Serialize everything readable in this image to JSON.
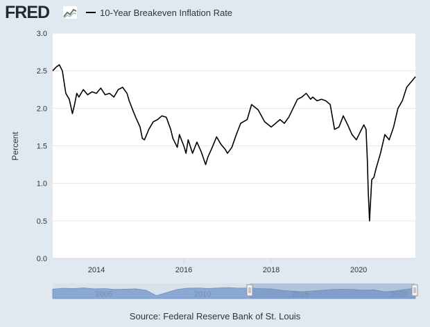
{
  "header": {
    "logo": "FRED",
    "legend_label": "10-Year Breakeven Inflation Rate",
    "line_color": "#000000"
  },
  "source_text": "Source: Federal Reserve Bank of St. Louis",
  "navigator": {
    "labels": [
      "2005",
      "2010",
      "2015",
      "2020"
    ],
    "fill_color": "#8ba8d2"
  },
  "chart_data": {
    "type": "line",
    "title": "",
    "xlabel": "",
    "ylabel": "Percent",
    "xlim": [
      2013.0,
      2021.3
    ],
    "ylim": [
      0.0,
      3.0
    ],
    "y_ticks": [
      "0.0",
      "0.5",
      "1.0",
      "1.5",
      "2.0",
      "2.5",
      "3.0"
    ],
    "x_ticks": [
      "2014",
      "2016",
      "2018",
      "2020"
    ],
    "grid": true,
    "legend": "top-left",
    "series": [
      {
        "name": "10-Year Breakeven Inflation Rate",
        "x": [
          2013.0,
          2013.08,
          2013.15,
          2013.22,
          2013.3,
          2013.38,
          2013.45,
          2013.5,
          2013.55,
          2013.6,
          2013.7,
          2013.8,
          2013.9,
          2014.0,
          2014.1,
          2014.2,
          2014.3,
          2014.4,
          2014.5,
          2014.6,
          2014.7,
          2014.75,
          2014.85,
          2014.9,
          2015.0,
          2015.05,
          2015.1,
          2015.2,
          2015.3,
          2015.4,
          2015.5,
          2015.6,
          2015.7,
          2015.75,
          2015.85,
          2015.9,
          2016.0,
          2016.05,
          2016.1,
          2016.2,
          2016.3,
          2016.4,
          2016.5,
          2016.55,
          2016.65,
          2016.75,
          2016.85,
          2016.95,
          2017.0,
          2017.1,
          2017.2,
          2017.3,
          2017.45,
          2017.55,
          2017.7,
          2017.85,
          2018.0,
          2018.1,
          2018.2,
          2018.3,
          2018.4,
          2018.5,
          2018.6,
          2018.7,
          2018.8,
          2018.9,
          2018.95,
          2019.05,
          2019.15,
          2019.25,
          2019.35,
          2019.45,
          2019.55,
          2019.65,
          2019.75,
          2019.85,
          2019.95,
          2020.05,
          2020.12,
          2020.17,
          2020.2,
          2020.22,
          2020.25,
          2020.3,
          2020.35,
          2020.4,
          2020.5,
          2020.6,
          2020.7,
          2020.8,
          2020.9,
          2021.0,
          2021.1,
          2021.2,
          2021.3
        ],
        "values": [
          2.5,
          2.55,
          2.58,
          2.5,
          2.2,
          2.12,
          1.93,
          2.05,
          2.2,
          2.15,
          2.25,
          2.18,
          2.22,
          2.2,
          2.27,
          2.18,
          2.2,
          2.15,
          2.25,
          2.28,
          2.2,
          2.1,
          1.95,
          1.88,
          1.75,
          1.6,
          1.58,
          1.72,
          1.82,
          1.85,
          1.9,
          1.88,
          1.72,
          1.6,
          1.48,
          1.65,
          1.5,
          1.4,
          1.58,
          1.4,
          1.55,
          1.42,
          1.25,
          1.35,
          1.48,
          1.62,
          1.52,
          1.45,
          1.4,
          1.48,
          1.65,
          1.8,
          1.85,
          2.05,
          1.98,
          1.82,
          1.75,
          1.8,
          1.85,
          1.8,
          1.88,
          2.0,
          2.12,
          2.15,
          2.2,
          2.12,
          2.15,
          2.1,
          2.12,
          2.1,
          2.05,
          1.72,
          1.75,
          1.9,
          1.78,
          1.65,
          1.58,
          1.7,
          1.78,
          1.72,
          1.3,
          0.9,
          0.5,
          1.05,
          1.08,
          1.2,
          1.4,
          1.65,
          1.58,
          1.75,
          2.0,
          2.1,
          2.28,
          2.35,
          2.42
        ]
      }
    ]
  }
}
